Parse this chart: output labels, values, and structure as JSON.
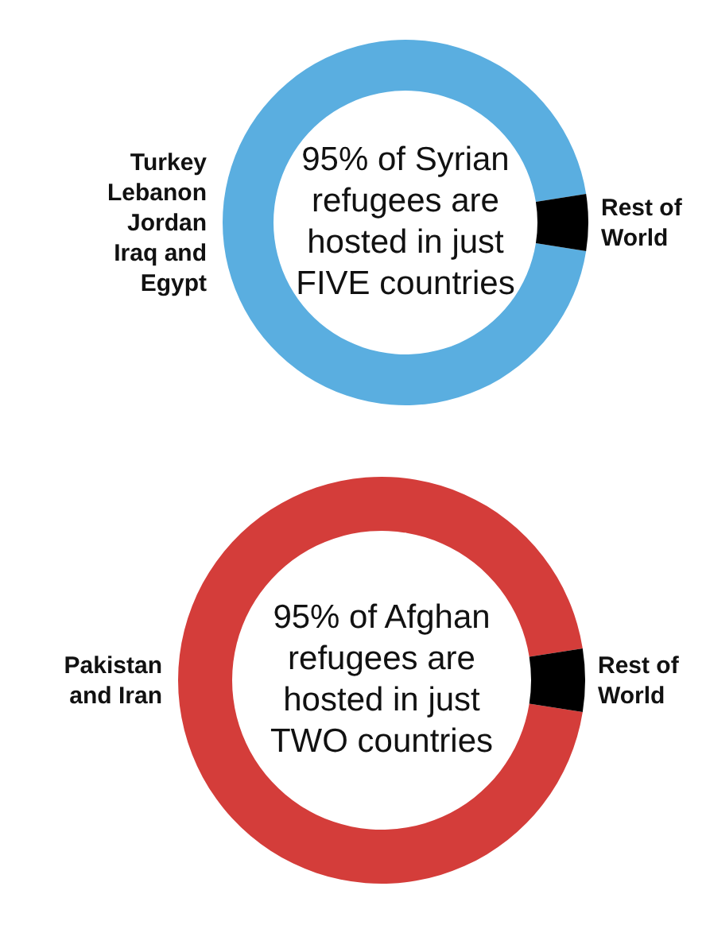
{
  "chart_data": [
    {
      "type": "donut",
      "title": "95% of Syrian refugees are hosted in just FIVE countries",
      "categories": [
        "Turkey Lebanon Jordan Iraq and Egypt",
        "Rest of World"
      ],
      "values": [
        95,
        5
      ],
      "colors": [
        "#5aaee0",
        "#000000"
      ]
    },
    {
      "type": "donut",
      "title": "95% of Afghan refugees are hosted in just TWO countries",
      "categories": [
        "Pakistan and Iran",
        "Rest of World"
      ],
      "values": [
        95,
        5
      ],
      "colors": [
        "#d43d3a",
        "#000000"
      ]
    }
  ]
}
